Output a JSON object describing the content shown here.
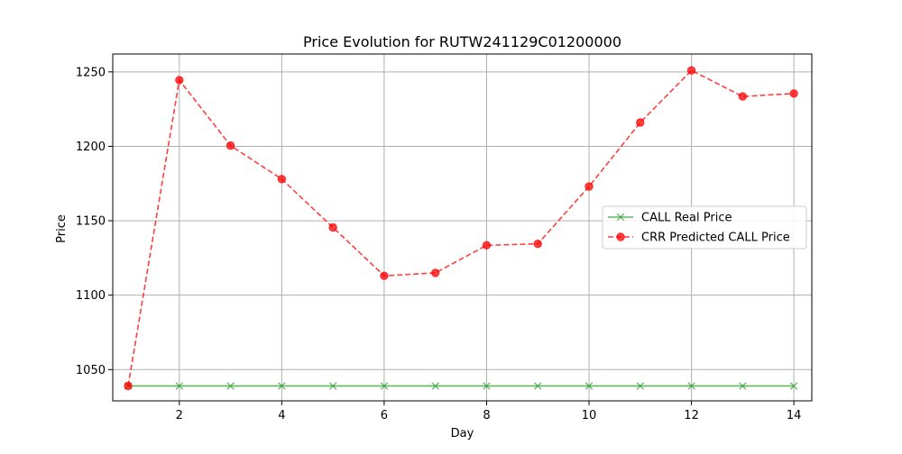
{
  "chart_data": {
    "type": "line",
    "title": "Price Evolution for RUTW241129C01200000",
    "xlabel": "Day",
    "ylabel": "Price",
    "xlim": [
      0.7,
      14.35
    ],
    "ylim": [
      1029,
      1262
    ],
    "xticks": [
      2,
      4,
      6,
      8,
      10,
      12,
      14
    ],
    "yticks": [
      1050,
      1100,
      1150,
      1200,
      1250
    ],
    "grid": true,
    "legend_position": "center-right",
    "x": [
      1,
      2,
      3,
      4,
      5,
      6,
      7,
      8,
      9,
      10,
      11,
      12,
      13,
      14
    ],
    "series": [
      {
        "name": "CALL Real Price",
        "color": "#2ca02c",
        "style": "solid",
        "marker": "x",
        "values": [
          1039,
          1039,
          1039,
          1039,
          1039,
          1039,
          1039,
          1039,
          1039,
          1039,
          1039,
          1039,
          1039,
          1039
        ]
      },
      {
        "name": "CRR Predicted CALL Price",
        "color": "#ff0000",
        "style": "dashed",
        "marker": "o",
        "values": [
          1039,
          1244.5,
          1200.5,
          1178,
          1145.5,
          1113,
          1115,
          1133.5,
          1134.5,
          1173,
          1216,
          1251,
          1233.5,
          1235.5
        ]
      }
    ]
  }
}
